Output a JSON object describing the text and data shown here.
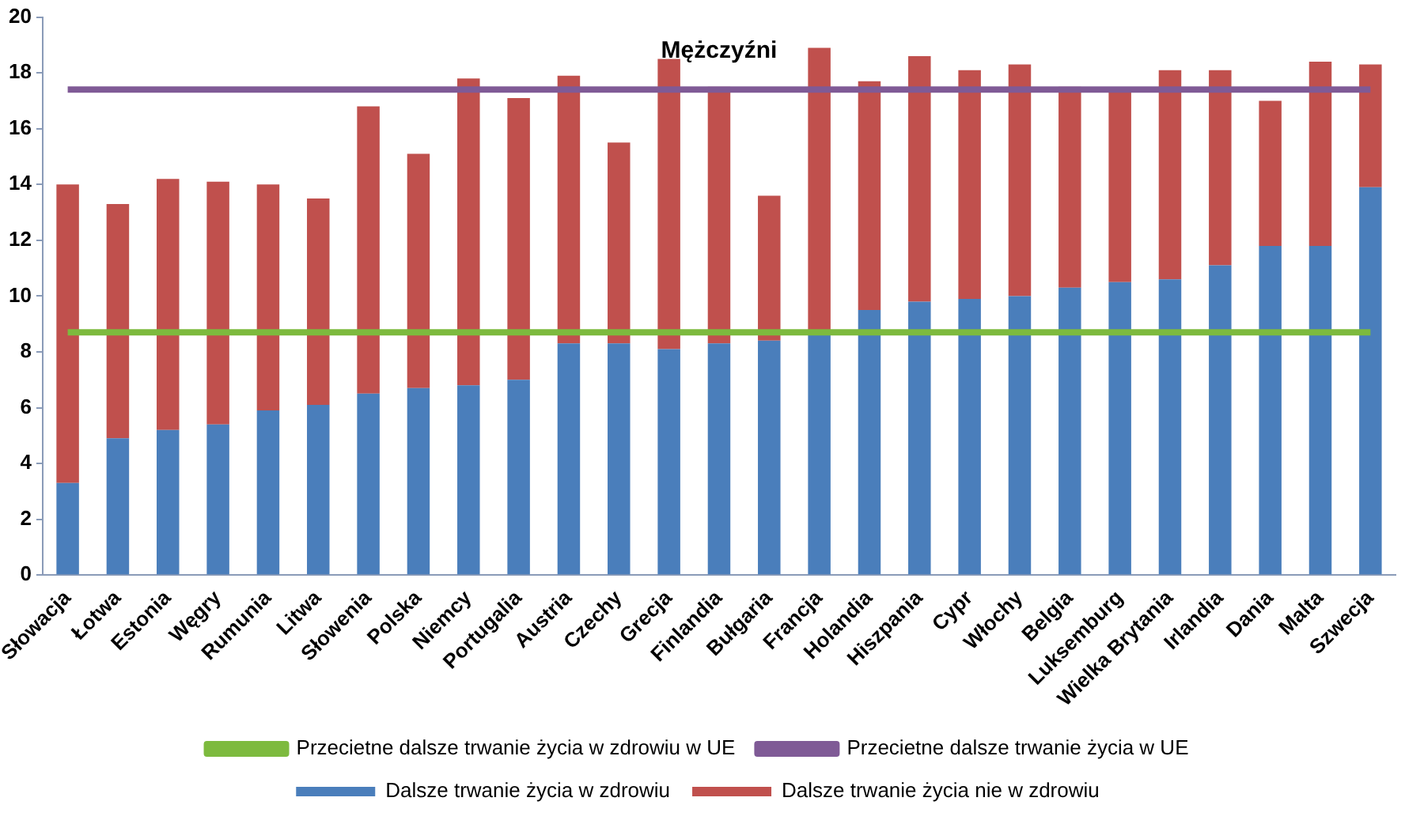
{
  "chart_data": {
    "type": "bar",
    "title": "Mężczyźni",
    "stacked": true,
    "legend": "bottom",
    "grid": false,
    "categories": [
      "Słowacja",
      "Łotwa",
      "Estonia",
      "Węgry",
      "Rumunia",
      "Litwa",
      "Słowenia",
      "Polska",
      "Niemcy",
      "Portugalia",
      "Austria",
      "Czechy",
      "Grecja",
      "Finlandia",
      "Bułgaria",
      "Francja",
      "Holandia",
      "Hiszpania",
      "Cypr",
      "Włochy",
      "Belgia",
      "Luksemburg",
      "Wielka Brytania",
      "Irlandia",
      "Dania",
      "Malta",
      "Szwecja"
    ],
    "ylim": [
      0,
      20
    ],
    "yticks": [
      0,
      2,
      4,
      6,
      8,
      10,
      12,
      14,
      16,
      18,
      20
    ],
    "series": [
      {
        "name": "Dalsze trwanie życia w zdrowiu",
        "color": "#4a7ebb",
        "values": [
          3.3,
          4.9,
          5.2,
          5.4,
          5.9,
          6.1,
          6.5,
          6.7,
          6.8,
          7.0,
          8.3,
          8.3,
          8.1,
          8.3,
          8.4,
          8.6,
          9.5,
          9.8,
          9.9,
          10.0,
          10.3,
          10.5,
          10.6,
          11.1,
          11.8,
          11.8,
          13.9
        ]
      },
      {
        "name": "Dalsze trwanie życia nie w zdrowiu",
        "color": "#c0504d",
        "values": [
          10.7,
          8.4,
          9.0,
          8.7,
          8.1,
          7.4,
          10.3,
          8.4,
          11.0,
          10.1,
          9.6,
          7.2,
          10.4,
          9.2,
          5.2,
          10.3,
          8.2,
          8.8,
          8.2,
          8.3,
          7.2,
          6.9,
          7.5,
          7.0,
          5.2,
          6.6,
          4.4
        ]
      },
      {
        "name": "Przecietne dalsze trwanie życia w zdrowiu w UE",
        "type": "line",
        "color": "#7dba3e",
        "values": [
          8.7,
          8.7,
          8.7,
          8.7,
          8.7,
          8.7,
          8.7,
          8.7,
          8.7,
          8.7,
          8.7,
          8.7,
          8.7,
          8.7,
          8.7,
          8.7,
          8.7,
          8.7,
          8.7,
          8.7,
          8.7,
          8.7,
          8.7,
          8.7,
          8.7,
          8.7,
          8.7
        ]
      },
      {
        "name": "Przecietne dalsze trwanie życia w UE",
        "type": "line",
        "color": "#7f5a96",
        "values": [
          17.4,
          17.4,
          17.4,
          17.4,
          17.4,
          17.4,
          17.4,
          17.4,
          17.4,
          17.4,
          17.4,
          17.4,
          17.4,
          17.4,
          17.4,
          17.4,
          17.4,
          17.4,
          17.4,
          17.4,
          17.4,
          17.4,
          17.4,
          17.4,
          17.4,
          17.4,
          17.4
        ]
      }
    ]
  }
}
